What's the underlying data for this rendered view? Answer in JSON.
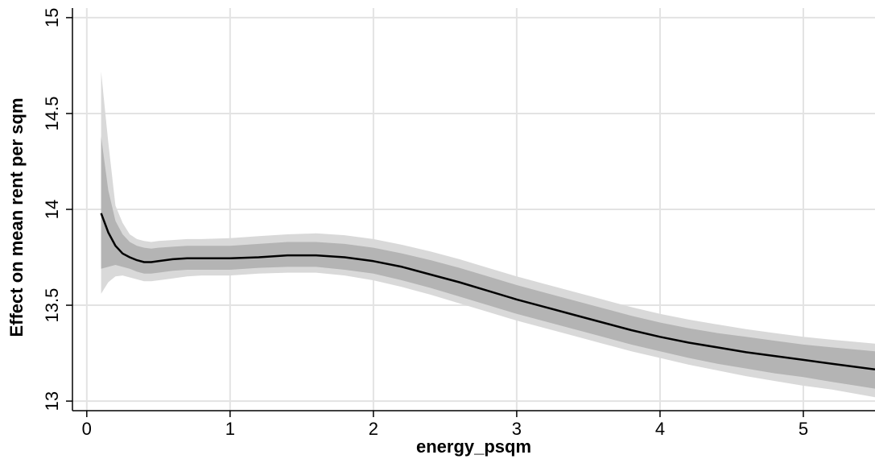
{
  "chart_data": {
    "type": "line",
    "xlabel": "energy_psqm",
    "ylabel": "Effect on mean rent per sqm",
    "xlim": [
      -0.1,
      5.5
    ],
    "ylim": [
      12.95,
      15.05
    ],
    "x_ticks": [
      0,
      1,
      2,
      3,
      4,
      5
    ],
    "x_tick_labels": [
      "0",
      "1",
      "2",
      "3",
      "4",
      "5"
    ],
    "y_ticks": [
      13,
      13.5,
      14,
      14.5,
      15
    ],
    "y_tick_labels": [
      "13",
      "13.5",
      "14",
      "14.5",
      "15"
    ],
    "grid": true,
    "legend": "none",
    "colors": {
      "line": "#000000",
      "inner_band": "#b4b4b4",
      "outer_band": "#d9d9d9",
      "grid": "#e3e3e3",
      "axis": "#000000"
    },
    "series": [
      {
        "x": [
          0.1,
          0.15,
          0.2,
          0.25,
          0.3,
          0.35,
          0.4,
          0.45,
          0.5,
          0.6,
          0.7,
          0.8,
          1.0,
          1.2,
          1.4,
          1.6,
          1.8,
          2.0,
          2.2,
          2.4,
          2.6,
          2.8,
          3.0,
          3.2,
          3.4,
          3.6,
          3.8,
          4.0,
          4.2,
          4.4,
          4.6,
          4.8,
          5.0,
          5.2,
          5.5
        ],
        "y": [
          13.98,
          13.88,
          13.81,
          13.77,
          13.75,
          13.735,
          13.725,
          13.725,
          13.73,
          13.74,
          13.745,
          13.745,
          13.745,
          13.75,
          13.76,
          13.76,
          13.75,
          13.73,
          13.7,
          13.66,
          13.62,
          13.575,
          13.53,
          13.49,
          13.45,
          13.41,
          13.37,
          13.335,
          13.305,
          13.28,
          13.255,
          13.235,
          13.215,
          13.195,
          13.165
        ],
        "inner_lower": [
          13.69,
          13.7,
          13.71,
          13.7,
          13.69,
          13.675,
          13.665,
          13.665,
          13.67,
          13.68,
          13.685,
          13.685,
          13.685,
          13.695,
          13.7,
          13.7,
          13.685,
          13.665,
          13.63,
          13.59,
          13.545,
          13.5,
          13.455,
          13.415,
          13.375,
          13.335,
          13.295,
          13.26,
          13.225,
          13.195,
          13.17,
          13.145,
          13.125,
          13.1,
          13.065
        ],
        "inner_upper": [
          14.38,
          14.1,
          13.94,
          13.87,
          13.83,
          13.81,
          13.8,
          13.795,
          13.8,
          13.805,
          13.81,
          13.81,
          13.81,
          13.82,
          13.83,
          13.83,
          13.82,
          13.8,
          13.77,
          13.735,
          13.695,
          13.65,
          13.605,
          13.565,
          13.525,
          13.485,
          13.445,
          13.41,
          13.38,
          13.355,
          13.335,
          13.315,
          13.295,
          13.28,
          13.26
        ],
        "outer_lower": [
          13.56,
          13.62,
          13.65,
          13.655,
          13.645,
          13.635,
          13.625,
          13.625,
          13.63,
          13.64,
          13.65,
          13.655,
          13.655,
          13.665,
          13.67,
          13.67,
          13.655,
          13.63,
          13.595,
          13.555,
          13.51,
          13.465,
          13.42,
          13.38,
          13.34,
          13.3,
          13.26,
          13.225,
          13.19,
          13.16,
          13.13,
          13.105,
          13.08,
          13.06,
          13.02
        ],
        "outer_upper": [
          14.72,
          14.35,
          14.02,
          13.93,
          13.87,
          13.845,
          13.835,
          13.83,
          13.835,
          13.84,
          13.845,
          13.845,
          13.85,
          13.86,
          13.87,
          13.875,
          13.865,
          13.845,
          13.815,
          13.78,
          13.74,
          13.695,
          13.65,
          13.61,
          13.57,
          13.53,
          13.49,
          13.455,
          13.425,
          13.4,
          13.375,
          13.355,
          13.335,
          13.32,
          13.3
        ]
      }
    ]
  }
}
